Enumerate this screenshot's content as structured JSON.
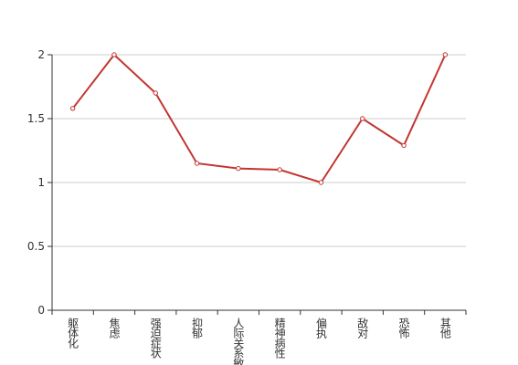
{
  "chart_data": {
    "type": "line",
    "categories": [
      "躯体化",
      "焦虑",
      "强迫症状",
      "抑郁",
      "人际关系敏感",
      "精神病性",
      "偏执",
      "敌对",
      "恐怖",
      "其他"
    ],
    "values": [
      1.58,
      2,
      1.7,
      1.15,
      1.11,
      1.1,
      1,
      1.5,
      1.29,
      2
    ],
    "color": "#c23531",
    "ylim": [
      0,
      2
    ],
    "yticks": [
      0,
      0.5,
      1,
      1.5,
      2
    ],
    "grid": true
  }
}
